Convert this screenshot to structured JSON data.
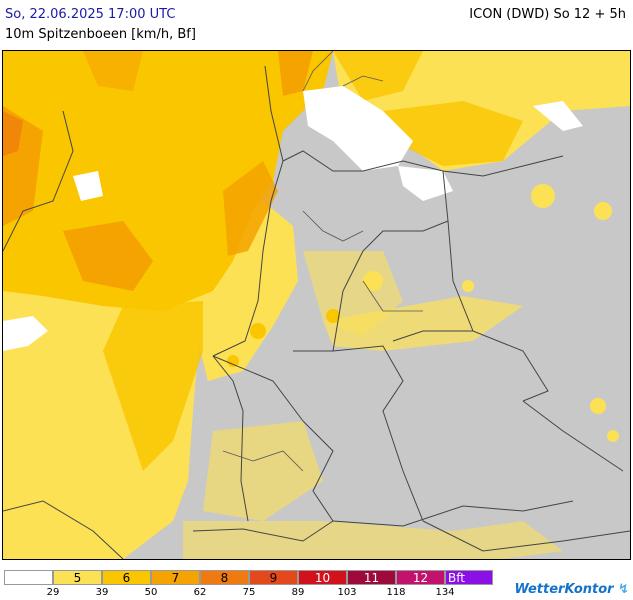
{
  "header": {
    "datetime": "So, 22.06.2025 17:00 UTC",
    "model": "ICON (DWD) So 12 + 5h",
    "parameter": "10m Spitzenboeen [km/h, Bf]"
  },
  "legend": {
    "classes": [
      {
        "label": "",
        "color": "#ffffff"
      },
      {
        "label": "5",
        "color": "#fde154"
      },
      {
        "label": "6",
        "color": "#f9c600"
      },
      {
        "label": "7",
        "color": "#f5a300"
      },
      {
        "label": "8",
        "color": "#ee7a10"
      },
      {
        "label": "9",
        "color": "#e4491c"
      },
      {
        "label": "10",
        "color": "#d1121d"
      },
      {
        "label": "11",
        "color": "#9e0a3a"
      },
      {
        "label": "12",
        "color": "#c3126e"
      },
      {
        "label": "Bft",
        "color": "#8b10e8"
      }
    ],
    "ticks": [
      "29",
      "39",
      "50",
      "62",
      "75",
      "89",
      "103",
      "118",
      "134"
    ]
  },
  "brand": {
    "name": "WetterKontor",
    "icon": "wind-logo-icon"
  },
  "map": {
    "background_color": "#c8c8c8",
    "border_color": "#555555",
    "land_no_warning_color": "#c8c8c8",
    "sea_calm_color": "#ffffff"
  }
}
